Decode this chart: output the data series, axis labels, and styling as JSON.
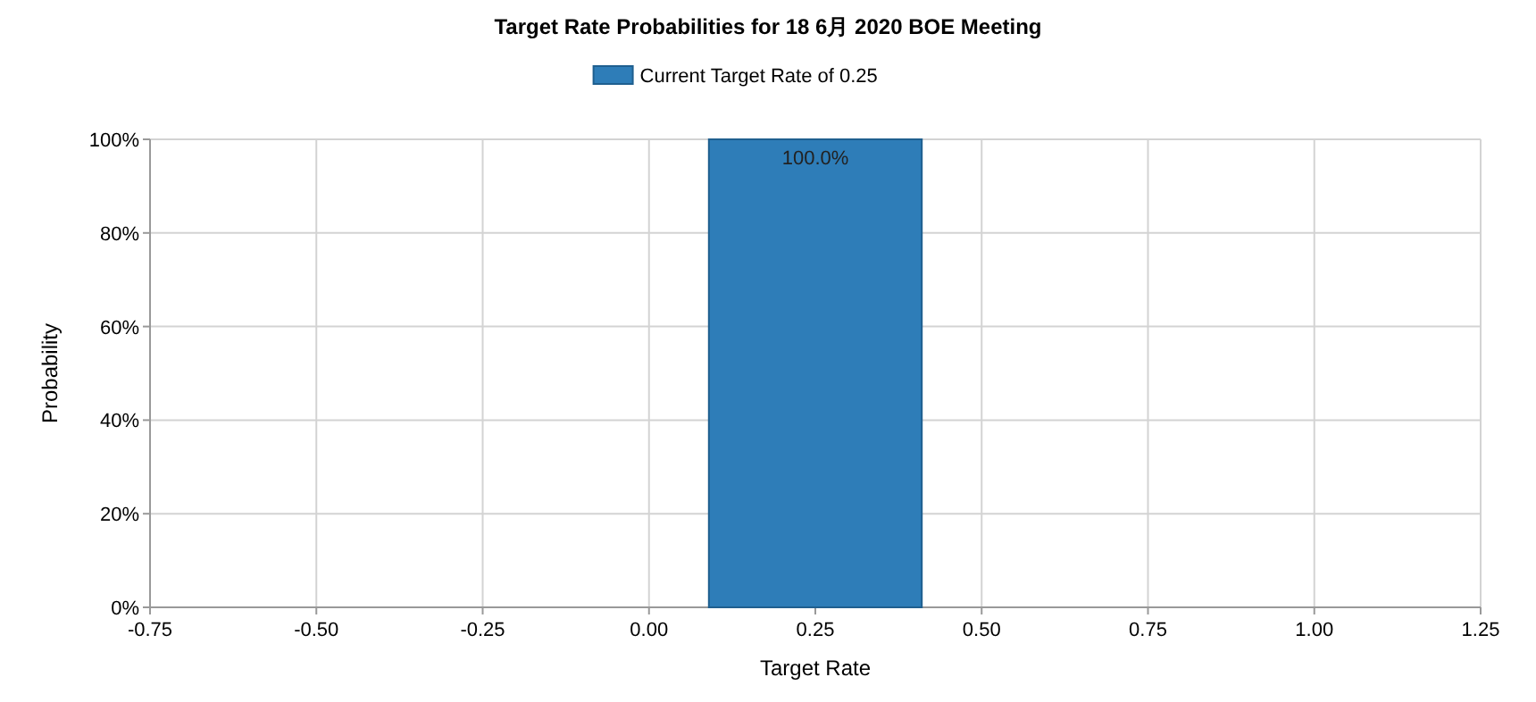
{
  "chart_data": {
    "type": "bar",
    "title": "Target Rate Probabilities for 18 6月 2020 BOE Meeting",
    "xlabel": "Target Rate",
    "ylabel": "Probability",
    "x": [
      0.25
    ],
    "series": [
      {
        "name": "Current Target Rate of 0.25",
        "color": "#2e7db8",
        "values": [
          100
        ],
        "value_labels": [
          "100.0%"
        ]
      }
    ],
    "xlim": [
      -0.75,
      1.25
    ],
    "xticks": [
      {
        "value": -0.75,
        "label": "-0.75"
      },
      {
        "value": -0.5,
        "label": "-0.50"
      },
      {
        "value": -0.25,
        "label": "-0.25"
      },
      {
        "value": 0,
        "label": "0.00"
      },
      {
        "value": 0.25,
        "label": "0.25"
      },
      {
        "value": 0.5,
        "label": "0.50"
      },
      {
        "value": 0.75,
        "label": "0.75"
      },
      {
        "value": 1,
        "label": "1.00"
      },
      {
        "value": 1.25,
        "label": "1.25"
      }
    ],
    "ylim": [
      0,
      100
    ],
    "yticks": [
      {
        "value": 0,
        "label": "0%"
      },
      {
        "value": 20,
        "label": "20%"
      },
      {
        "value": 40,
        "label": "40%"
      },
      {
        "value": 60,
        "label": "60%"
      },
      {
        "value": 80,
        "label": "80%"
      },
      {
        "value": 100,
        "label": "100%"
      }
    ],
    "grid": true,
    "legend": "top"
  }
}
